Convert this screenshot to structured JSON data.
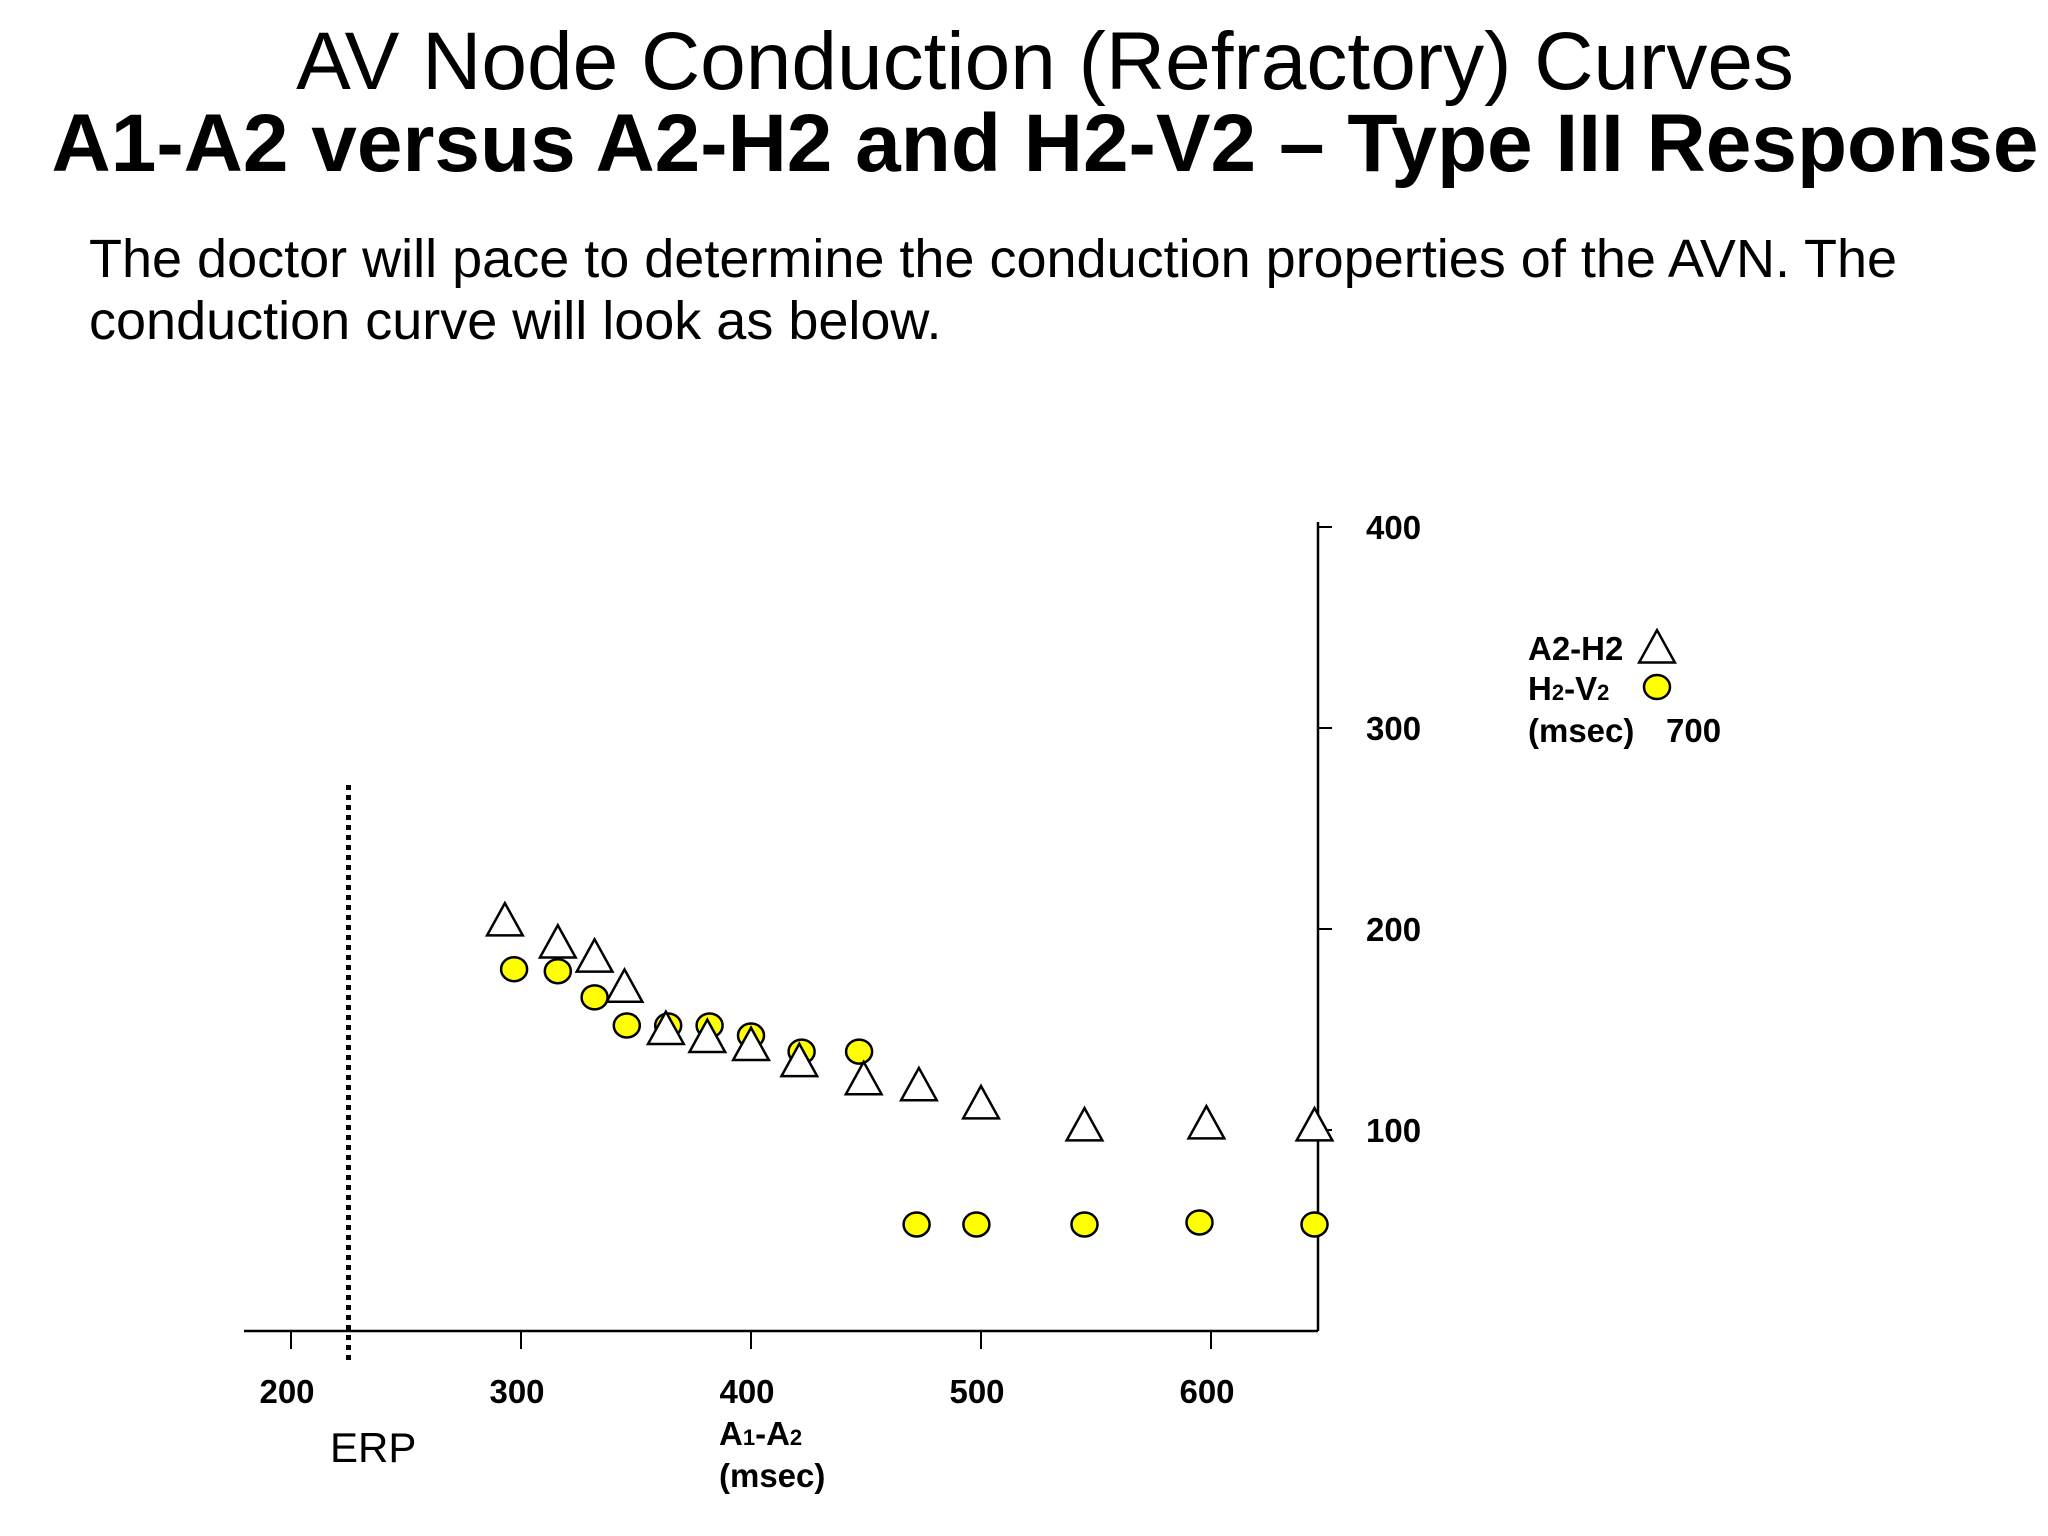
{
  "slide": {
    "title": "AV Node Conduction (Refractory) Curves",
    "subtitle": "A1-A2 versus A2-H2 and H2-V2 – Type III Response",
    "description": "The doctor will pace to determine the conduction properties of the AVN. The conduction curve will look as below."
  },
  "chart_data": {
    "type": "scatter",
    "xlabel": {
      "parts": [
        "A",
        "1",
        "-A",
        "2"
      ],
      "unit": "(msec)"
    },
    "ylabel_unit": "(msec)",
    "x_ticks": [
      200,
      300,
      400,
      500,
      600
    ],
    "y_ticks": [
      100,
      200,
      300,
      400
    ],
    "xlim": [
      180,
      650
    ],
    "ylim": [
      0,
      405
    ],
    "erp": {
      "label": "ERP",
      "x": 225
    },
    "legend": {
      "placement": "right",
      "items": [
        {
          "label": "A2-H2",
          "marker": "triangle"
        },
        {
          "label_parts": [
            "H",
            "2",
            "-V",
            "2"
          ],
          "marker": "circle"
        }
      ],
      "unit": "(msec)",
      "extra_value": "700"
    },
    "series": [
      {
        "name": "A2-H2",
        "marker": "triangle",
        "points": [
          [
            293,
            204
          ],
          [
            316,
            193
          ],
          [
            332,
            186
          ],
          [
            345,
            171
          ],
          [
            363,
            150
          ],
          [
            381,
            146
          ],
          [
            400,
            142
          ],
          [
            421,
            134
          ],
          [
            449,
            125
          ],
          [
            473,
            122
          ],
          [
            500,
            113
          ],
          [
            545,
            102
          ],
          [
            598,
            103
          ],
          [
            645,
            102
          ]
        ]
      },
      {
        "name": "H2-V2",
        "marker": "circle",
        "color": "#ffff00",
        "points": [
          [
            297,
            180
          ],
          [
            316,
            179
          ],
          [
            332,
            166
          ],
          [
            346,
            152
          ],
          [
            364,
            152
          ],
          [
            382,
            152
          ],
          [
            400,
            147
          ],
          [
            422,
            139
          ],
          [
            447,
            139
          ],
          [
            472,
            53
          ],
          [
            498,
            53
          ],
          [
            545,
            53
          ],
          [
            595,
            54
          ],
          [
            645,
            53
          ]
        ]
      }
    ]
  }
}
